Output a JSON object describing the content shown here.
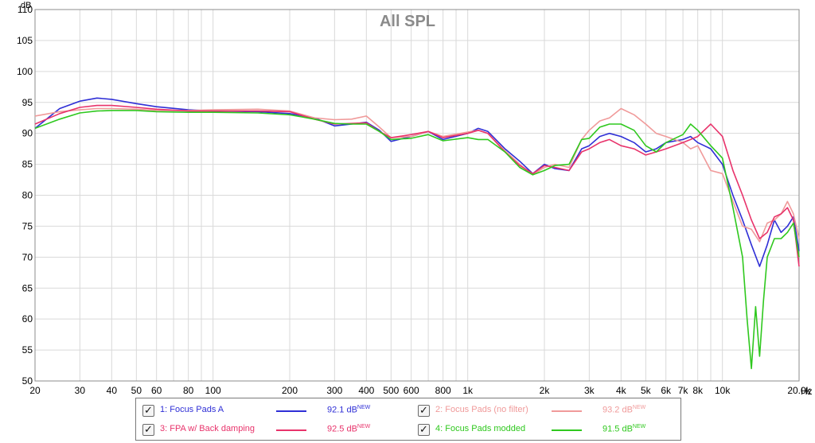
{
  "chart_data": {
    "type": "line",
    "title": "All SPL",
    "ylabel": "dB",
    "xlabel": "Hz",
    "xscale": "log",
    "xlim": [
      20,
      20000
    ],
    "ylim": [
      50,
      110
    ],
    "grid": true,
    "x_ticks": [
      {
        "v": 20,
        "label": "20"
      },
      {
        "v": 30,
        "label": "30"
      },
      {
        "v": 40,
        "label": "40"
      },
      {
        "v": 50,
        "label": "50"
      },
      {
        "v": 60,
        "label": "60"
      },
      {
        "v": 80,
        "label": "80"
      },
      {
        "v": 100,
        "label": "100"
      },
      {
        "v": 200,
        "label": "200"
      },
      {
        "v": 300,
        "label": "300"
      },
      {
        "v": 400,
        "label": "400"
      },
      {
        "v": 500,
        "label": "500"
      },
      {
        "v": 600,
        "label": "600"
      },
      {
        "v": 800,
        "label": "800"
      },
      {
        "v": 1000,
        "label": "1k"
      },
      {
        "v": 2000,
        "label": "2k"
      },
      {
        "v": 3000,
        "label": "3k"
      },
      {
        "v": 4000,
        "label": "4k"
      },
      {
        "v": 5000,
        "label": "5k"
      },
      {
        "v": 6000,
        "label": "6k"
      },
      {
        "v": 7000,
        "label": "7k"
      },
      {
        "v": 8000,
        "label": "8k"
      },
      {
        "v": 10000,
        "label": "10k"
      },
      {
        "v": 20000,
        "label": "20.0k"
      }
    ],
    "y_ticks": [
      {
        "v": 50,
        "label": "50"
      },
      {
        "v": 55,
        "label": "55"
      },
      {
        "v": 60,
        "label": "60"
      },
      {
        "v": 65,
        "label": "65"
      },
      {
        "v": 70,
        "label": "70"
      },
      {
        "v": 75,
        "label": "75"
      },
      {
        "v": 80,
        "label": "80"
      },
      {
        "v": 85,
        "label": "85"
      },
      {
        "v": 90,
        "label": "90"
      },
      {
        "v": 95,
        "label": "95"
      },
      {
        "v": 100,
        "label": "100"
      },
      {
        "v": 105,
        "label": "105"
      },
      {
        "v": 110,
        "label": "110"
      }
    ],
    "series": [
      {
        "name": "1: Focus Pads A",
        "color": "#2f2fd6",
        "x": [
          20,
          25,
          30,
          35,
          40,
          50,
          60,
          80,
          100,
          150,
          200,
          250,
          300,
          350,
          400,
          450,
          500,
          600,
          700,
          800,
          1000,
          1100,
          1200,
          1400,
          1600,
          1800,
          2000,
          2200,
          2500,
          2800,
          3000,
          3300,
          3600,
          4000,
          4500,
          5000,
          5500,
          6000,
          7000,
          7500,
          8000,
          9000,
          10000,
          11000,
          12000,
          13000,
          14000,
          15000,
          16000,
          17000,
          18000,
          19000,
          20000
        ],
        "y": [
          90.8,
          94.0,
          95.2,
          95.7,
          95.5,
          94.8,
          94.3,
          93.8,
          93.6,
          93.5,
          93.2,
          92.5,
          91.2,
          91.5,
          91.8,
          90.5,
          88.7,
          89.5,
          90.3,
          89.0,
          90.0,
          90.8,
          90.3,
          87.5,
          85.5,
          83.5,
          85.0,
          84.3,
          84.0,
          87.5,
          88.0,
          89.5,
          90.0,
          89.5,
          88.5,
          87.0,
          87.5,
          88.5,
          89.0,
          89.5,
          88.5,
          87.5,
          85.0,
          80.0,
          76.0,
          72.0,
          68.5,
          72.0,
          76.0,
          74.0,
          75.0,
          76.5,
          71.0
        ]
      },
      {
        "name": "2: Focus Pads (no filter)",
        "color": "#f09a9a",
        "x": [
          20,
          25,
          30,
          35,
          40,
          50,
          60,
          80,
          100,
          150,
          200,
          250,
          300,
          350,
          400,
          450,
          500,
          600,
          700,
          800,
          1000,
          1100,
          1200,
          1400,
          1600,
          1800,
          2000,
          2200,
          2500,
          2800,
          3000,
          3300,
          3600,
          4000,
          4500,
          5000,
          5500,
          6000,
          7000,
          7500,
          8000,
          9000,
          10000,
          11000,
          12000,
          13000,
          14000,
          15000,
          16000,
          17000,
          18000,
          19000,
          20000
        ],
        "y": [
          92.8,
          93.5,
          93.8,
          94.0,
          94.0,
          93.9,
          93.7,
          93.7,
          93.8,
          93.9,
          93.6,
          92.5,
          92.2,
          92.3,
          92.8,
          91.0,
          89.3,
          89.5,
          90.3,
          89.5,
          90.2,
          90.5,
          90.0,
          87.2,
          85.0,
          83.3,
          84.5,
          85.0,
          84.5,
          89.0,
          90.5,
          92.0,
          92.5,
          94.0,
          93.0,
          91.5,
          90.0,
          89.5,
          88.5,
          87.5,
          88.0,
          84.0,
          83.5,
          79.0,
          75.0,
          74.5,
          72.5,
          75.5,
          76.0,
          77.0,
          79.0,
          77.0,
          73.0
        ]
      },
      {
        "name": "3: FPA w/ Back damping",
        "color": "#e8336b",
        "x": [
          20,
          25,
          30,
          35,
          40,
          50,
          60,
          80,
          100,
          150,
          200,
          250,
          300,
          350,
          400,
          450,
          500,
          600,
          700,
          800,
          1000,
          1100,
          1200,
          1400,
          1600,
          1800,
          2000,
          2200,
          2500,
          2800,
          3000,
          3300,
          3600,
          4000,
          4500,
          5000,
          5500,
          6000,
          7000,
          7500,
          8000,
          9000,
          10000,
          11000,
          12000,
          13000,
          14000,
          15000,
          16000,
          17000,
          18000,
          19000,
          20000
        ],
        "y": [
          91.5,
          93.2,
          94.2,
          94.5,
          94.5,
          94.2,
          93.9,
          93.6,
          93.6,
          93.6,
          93.5,
          92.3,
          91.5,
          91.6,
          91.7,
          90.3,
          89.3,
          89.8,
          90.3,
          89.3,
          90.0,
          90.5,
          90.0,
          87.0,
          84.8,
          83.5,
          84.8,
          84.5,
          84.0,
          87.0,
          87.5,
          88.5,
          89.0,
          88.0,
          87.5,
          86.5,
          87.0,
          87.5,
          88.5,
          89.0,
          89.5,
          91.5,
          89.5,
          84.0,
          80.0,
          76.0,
          73.0,
          74.0,
          76.5,
          77.0,
          78.0,
          76.0,
          68.5
        ]
      },
      {
        "name": "4: Focus Pads modded",
        "color": "#2fc81e",
        "x": [
          20,
          25,
          30,
          35,
          40,
          50,
          60,
          80,
          100,
          150,
          200,
          250,
          300,
          350,
          400,
          450,
          500,
          600,
          700,
          800,
          1000,
          1100,
          1200,
          1400,
          1600,
          1800,
          2000,
          2200,
          2500,
          2800,
          3000,
          3300,
          3600,
          4000,
          4500,
          5000,
          5500,
          6000,
          7000,
          7500,
          8000,
          9000,
          10000,
          11000,
          12000,
          12500,
          13000,
          13500,
          14000,
          14500,
          15000,
          16000,
          17000,
          18000,
          19000,
          20000
        ],
        "y": [
          90.8,
          92.3,
          93.3,
          93.6,
          93.7,
          93.7,
          93.5,
          93.4,
          93.4,
          93.3,
          93.0,
          92.3,
          91.6,
          91.5,
          91.5,
          90.3,
          89.0,
          89.2,
          89.8,
          88.8,
          89.3,
          89.0,
          89.0,
          87.0,
          84.5,
          83.3,
          84.0,
          84.8,
          85.0,
          89.0,
          89.2,
          91.0,
          91.5,
          91.5,
          90.5,
          88.0,
          87.0,
          88.5,
          89.8,
          91.5,
          90.5,
          88.0,
          86.0,
          78.0,
          70.0,
          60.0,
          52.0,
          62.0,
          54.0,
          63.0,
          70.0,
          73.0,
          73.0,
          74.0,
          75.5,
          70.0
        ]
      }
    ]
  },
  "legend": {
    "entries": [
      {
        "label": "1: Focus Pads A",
        "value": "92.1 dB",
        "badge": "NEW",
        "color": "#2f2fd6",
        "text_color": "#2f2fd6",
        "checked": true
      },
      {
        "label": "2: Focus Pads (no filter)",
        "value": "93.2 dB",
        "badge": "NEW",
        "color": "#f09a9a",
        "text_color": "#f09a9a",
        "checked": true
      },
      {
        "label": "3: FPA w/ Back damping",
        "value": "92.5 dB",
        "badge": "NEW",
        "color": "#e8336b",
        "text_color": "#e8336b",
        "checked": true
      },
      {
        "label": "4: Focus Pads modded",
        "value": "91.5 dB",
        "badge": "NEW",
        "color": "#2fc81e",
        "text_color": "#2fc81e",
        "checked": true
      }
    ]
  }
}
